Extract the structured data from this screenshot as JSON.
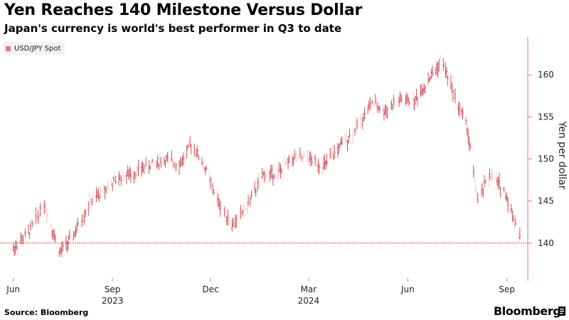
{
  "header": {
    "title": "Yen Reaches 140 Milestone Versus Dollar",
    "subtitle": "Japan's currency is world's best performer in Q3 to date"
  },
  "footer": {
    "source": "Source: Bloomberg",
    "brand": "Bloomberg"
  },
  "colors": {
    "series": "#c9434b",
    "series_light": "#f5c5c8",
    "reference_line": "#e0384b",
    "axis": "#e8767d"
  },
  "chart_data": {
    "type": "line",
    "style": "ohlc-bars",
    "legend": {
      "position": "top-left",
      "entries": [
        "USD/JPY Spot"
      ]
    },
    "series": [
      {
        "name": "USD/JPY Spot",
        "x": [
          "2023-06-01",
          "2023-06-15",
          "2023-06-30",
          "2023-07-14",
          "2023-07-28",
          "2023-08-11",
          "2023-08-25",
          "2023-09-08",
          "2023-09-22",
          "2023-10-06",
          "2023-10-20",
          "2023-11-03",
          "2023-11-13",
          "2023-11-24",
          "2023-12-08",
          "2023-12-22",
          "2024-01-05",
          "2024-01-19",
          "2024-02-02",
          "2024-02-16",
          "2024-03-01",
          "2024-03-15",
          "2024-03-29",
          "2024-04-12",
          "2024-04-29",
          "2024-05-10",
          "2024-05-24",
          "2024-06-07",
          "2024-06-21",
          "2024-07-03",
          "2024-07-12",
          "2024-07-26",
          "2024-08-05",
          "2024-08-16",
          "2024-08-30",
          "2024-09-13"
        ],
        "values": [
          139.3,
          141.2,
          144.6,
          138.8,
          141.2,
          144.7,
          146.4,
          147.8,
          148.4,
          149.3,
          149.9,
          149.4,
          151.8,
          149.5,
          144.9,
          142.2,
          144.6,
          148.1,
          148.4,
          150.2,
          150.0,
          149.1,
          151.3,
          153.3,
          156.8,
          155.7,
          157.0,
          156.8,
          159.6,
          161.7,
          158.3,
          153.8,
          144.9,
          148.2,
          146.2,
          140.8
        ]
      }
    ],
    "reference_line": {
      "value": 140
    },
    "x_range": [
      "2023-05-21",
      "2024-09-19"
    ],
    "x_ticks": [
      "Jun",
      "Sep",
      "Dec",
      "Mar",
      "Jun",
      "Sep"
    ],
    "x_tick_dates": [
      "2023-06-01",
      "2023-09-01",
      "2023-12-01",
      "2024-03-01",
      "2024-06-01",
      "2024-09-01"
    ],
    "year_labels": [
      "2023",
      "2024"
    ],
    "year_label_dates": [
      "2023-09-01",
      "2024-03-01"
    ],
    "ylabel": "Yen per dollar",
    "y_ticks": [
      140,
      145,
      150,
      155,
      160
    ],
    "ylim": [
      135.5,
      164.5
    ],
    "y_axis_side": "right",
    "grid": false
  }
}
